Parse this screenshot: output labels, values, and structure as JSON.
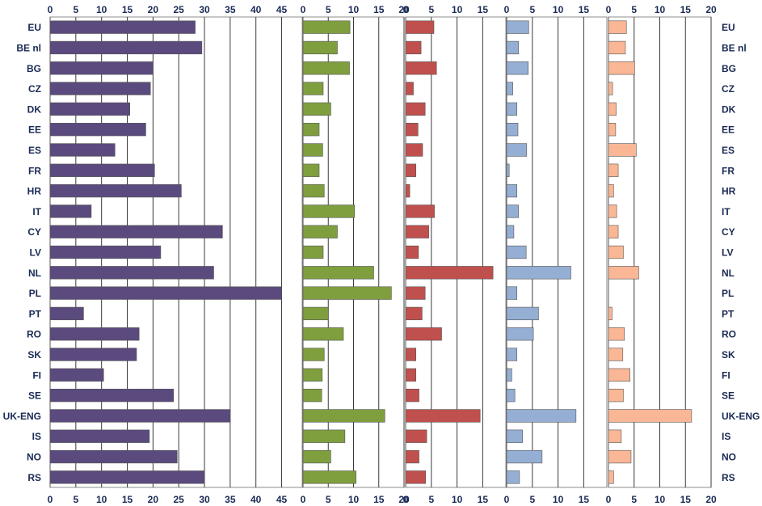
{
  "chart_data": {
    "type": "bar",
    "orientation": "horizontal",
    "title": "",
    "categories": [
      "EU",
      "BE nl",
      "BG",
      "CZ",
      "DK",
      "EE",
      "ES",
      "FR",
      "HR",
      "IT",
      "CY",
      "LV",
      "NL",
      "PL",
      "PT",
      "RO",
      "SK",
      "FI",
      "SE",
      "UK-ENG",
      "IS",
      "NO",
      "RS"
    ],
    "panels": [
      {
        "name": "panel-1",
        "color": "#5b4a7e",
        "ticks": [
          0,
          5,
          10,
          15,
          20,
          25,
          30,
          35,
          40,
          45
        ],
        "xlim": [
          0,
          49
        ],
        "values": [
          28.2,
          29.5,
          20.0,
          19.5,
          15.5,
          18.6,
          12.6,
          20.3,
          25.5,
          8.0,
          33.5,
          21.5,
          31.8,
          45.0,
          6.5,
          17.3,
          16.8,
          10.4,
          24.0,
          35.0,
          19.3,
          24.7,
          30.0
        ]
      },
      {
        "name": "panel-2",
        "color": "#7f9f3f",
        "ticks": [
          0,
          5,
          10,
          15,
          20
        ],
        "xlim": [
          0,
          20
        ],
        "values": [
          9.3,
          6.8,
          9.2,
          4.0,
          5.5,
          3.2,
          3.9,
          3.2,
          4.2,
          10.2,
          6.8,
          4.0,
          14.0,
          17.5,
          5.0,
          8.0,
          4.2,
          3.8,
          3.7,
          16.2,
          8.3,
          5.5,
          10.5
        ]
      },
      {
        "name": "panel-3",
        "color": "#c0504d",
        "ticks": [
          0,
          5,
          10,
          15
        ],
        "xlim": [
          0,
          19.5
        ],
        "values": [
          5.5,
          3.0,
          6.0,
          1.5,
          3.8,
          2.4,
          3.3,
          2.0,
          0.8,
          5.6,
          4.5,
          2.5,
          17.0,
          3.8,
          3.2,
          7.0,
          2.0,
          2.0,
          2.6,
          14.5,
          4.1,
          2.6,
          3.9
        ]
      },
      {
        "name": "panel-4",
        "color": "#95aed3",
        "ticks": [
          0,
          5,
          10,
          15
        ],
        "xlim": [
          0,
          19.5
        ],
        "values": [
          4.3,
          2.3,
          4.2,
          1.2,
          2.0,
          2.2,
          3.9,
          0.5,
          2.0,
          2.3,
          1.4,
          3.8,
          12.5,
          2.0,
          6.2,
          5.2,
          2.0,
          1.0,
          1.6,
          13.5,
          3.1,
          6.9,
          2.5
        ]
      },
      {
        "name": "panel-5",
        "color": "#fab795",
        "ticks": [
          0,
          5,
          10,
          15,
          20
        ],
        "xlim": [
          0,
          20
        ],
        "values": [
          3.5,
          3.3,
          5.1,
          0.8,
          1.5,
          1.4,
          5.4,
          1.9,
          1.0,
          1.6,
          1.9,
          2.9,
          5.9,
          0.0,
          0.7,
          3.1,
          2.8,
          4.2,
          2.9,
          16.2,
          2.5,
          4.4,
          1.0
        ]
      }
    ]
  }
}
